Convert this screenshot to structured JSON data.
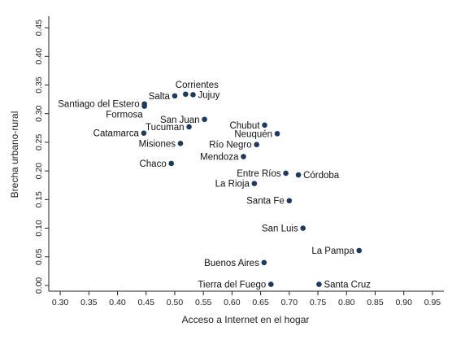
{
  "chart_data": {
    "type": "scatter",
    "title": "",
    "xlabel": "Acceso a Internet en el hogar",
    "ylabel": "Brecha urbano-rural",
    "xlim": [
      0.28,
      0.97
    ],
    "ylim": [
      -0.01,
      0.47
    ],
    "xticks": [
      0.3,
      0.35,
      0.4,
      0.45,
      0.5,
      0.55,
      0.6,
      0.65,
      0.7,
      0.75,
      0.8,
      0.85,
      0.9,
      0.95
    ],
    "xtick_labels": [
      "0.30",
      "0.35",
      "0.40",
      "0.45",
      "0.50",
      "0.55",
      "0.60",
      "0.65",
      "0.70",
      "0.75",
      "0.80",
      "0.85",
      "0.90",
      "0.95"
    ],
    "yticks": [
      0.0,
      0.05,
      0.1,
      0.15,
      0.2,
      0.25,
      0.3,
      0.35,
      0.4,
      0.45
    ],
    "ytick_labels": [
      "0.00",
      "0.05",
      "0.10",
      "0.15",
      "0.20",
      "0.25",
      "0.30",
      "0.35",
      "0.40",
      "0.45"
    ],
    "grid": false,
    "marker_color": "#1f3a5f",
    "points": [
      {
        "label": "Corrientes",
        "x": 0.519,
        "y": 0.334,
        "anchor": "below-left"
      },
      {
        "label": "Jujuy",
        "x": 0.532,
        "y": 0.333,
        "anchor": "right"
      },
      {
        "label": "Salta",
        "x": 0.5,
        "y": 0.331,
        "anchor": "left"
      },
      {
        "label": "Santiago del Estero",
        "x": 0.447,
        "y": 0.317,
        "anchor": "left"
      },
      {
        "label": "Formosa",
        "x": 0.447,
        "y": 0.313,
        "anchor": "below-left"
      },
      {
        "label": "San Juan",
        "x": 0.552,
        "y": 0.29,
        "anchor": "left"
      },
      {
        "label": "Chubut",
        "x": 0.657,
        "y": 0.28,
        "anchor": "left"
      },
      {
        "label": "Tucuman",
        "x": 0.525,
        "y": 0.277,
        "anchor": "left"
      },
      {
        "label": "Catamarca",
        "x": 0.446,
        "y": 0.266,
        "anchor": "left"
      },
      {
        "label": "Neuquén",
        "x": 0.679,
        "y": 0.265,
        "anchor": "left"
      },
      {
        "label": "Misiones",
        "x": 0.51,
        "y": 0.248,
        "anchor": "left"
      },
      {
        "label": "Río Negro",
        "x": 0.643,
        "y": 0.246,
        "anchor": "left"
      },
      {
        "label": "Mendoza",
        "x": 0.62,
        "y": 0.225,
        "anchor": "left"
      },
      {
        "label": "Chaco",
        "x": 0.494,
        "y": 0.213,
        "anchor": "left"
      },
      {
        "label": "Entre Ríos",
        "x": 0.694,
        "y": 0.196,
        "anchor": "left"
      },
      {
        "label": "Córdoba",
        "x": 0.716,
        "y": 0.193,
        "anchor": "right"
      },
      {
        "label": "La Rioja",
        "x": 0.639,
        "y": 0.178,
        "anchor": "left"
      },
      {
        "label": "Santa Fe",
        "x": 0.7,
        "y": 0.148,
        "anchor": "left"
      },
      {
        "label": "San Luis",
        "x": 0.724,
        "y": 0.1,
        "anchor": "left"
      },
      {
        "label": "La Pampa",
        "x": 0.822,
        "y": 0.061,
        "anchor": "left"
      },
      {
        "label": "Buenos Aires",
        "x": 0.656,
        "y": 0.04,
        "anchor": "left"
      },
      {
        "label": "Tierra del Fuego",
        "x": 0.668,
        "y": 0.002,
        "anchor": "left"
      },
      {
        "label": "Santa Cruz",
        "x": 0.752,
        "y": 0.002,
        "anchor": "right"
      }
    ]
  }
}
